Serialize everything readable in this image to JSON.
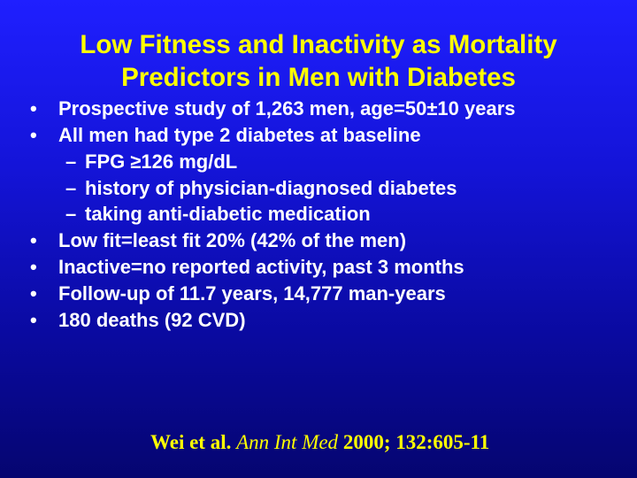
{
  "title": {
    "line1": "Low Fitness and Inactivity as Mortality",
    "line2": "Predictors in Men with Diabetes"
  },
  "bullets": [
    {
      "text": "Prospective study of 1,263 men, age=50±10 years"
    },
    {
      "text": "All men had type 2 diabetes at baseline",
      "subitems": [
        "FPG ≥126 mg/dL",
        "history of physician-diagnosed diabetes",
        "taking anti-diabetic medication"
      ]
    },
    {
      "text": "Low fit=least fit 20% (42% of the men)"
    },
    {
      "text": "Inactive=no reported activity, past 3 months"
    },
    {
      "text": "Follow-up of 11.7 years, 14,777 man-years"
    },
    {
      "text": "180 deaths (92 CVD)"
    }
  ],
  "citation": {
    "authors": "Wei et al.",
    "journal": "Ann Int Med",
    "details": "2000; 132:605-11"
  },
  "colors": {
    "title": "#ffff00",
    "body_text": "#ffffff",
    "background_top": "#1f1fff",
    "background_bottom": "#050570"
  }
}
